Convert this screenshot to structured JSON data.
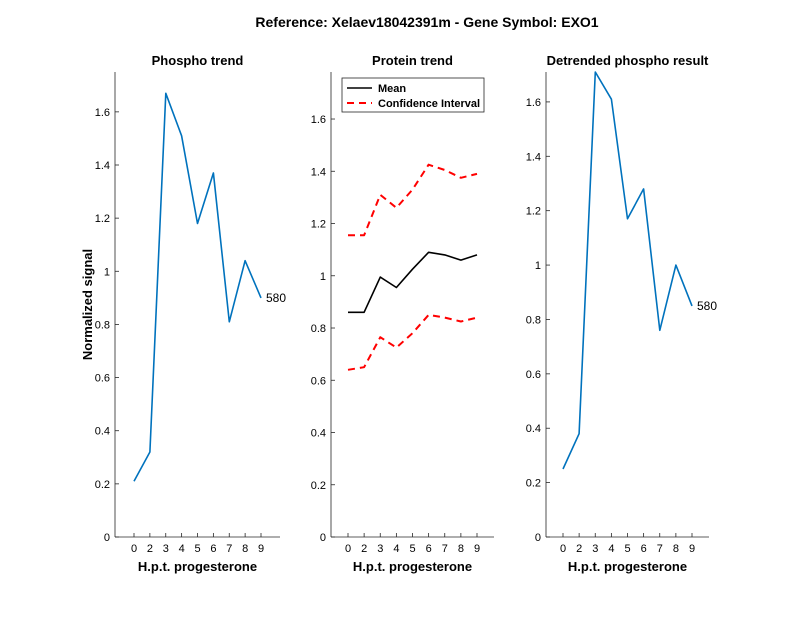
{
  "figure": {
    "suptitle": "Reference:  Xelaev18042391m - Gene Symbol:  EXO1"
  },
  "chart_data": [
    {
      "type": "line",
      "title": "Phospho trend",
      "xlabel": "H.p.t. progesterone",
      "ylabel": "Normalized signal",
      "categories": [
        "0",
        "2",
        "3",
        "4",
        "5",
        "6",
        "7",
        "8",
        "9"
      ],
      "ylim": [
        0,
        1.75
      ],
      "yticks": [
        0,
        0.2,
        0.4,
        0.6,
        0.8,
        1,
        1.2,
        1.4,
        1.6
      ],
      "series": [
        {
          "color": "#0072BD",
          "dash": "solid",
          "values": [
            0.21,
            0.32,
            1.67,
            1.51,
            1.18,
            1.37,
            0.81,
            1.04,
            0.9
          ]
        }
      ],
      "annotation": "580"
    },
    {
      "type": "line",
      "title": "Protein trend",
      "xlabel": "H.p.t. progesterone",
      "ylabel": "",
      "categories": [
        "0",
        "2",
        "3",
        "4",
        "5",
        "6",
        "7",
        "8",
        "9"
      ],
      "ylim": [
        0,
        1.78
      ],
      "yticks": [
        0,
        0.2,
        0.4,
        0.6,
        0.8,
        1,
        1.2,
        1.4,
        1.6
      ],
      "legend_position": "top-left",
      "series": [
        {
          "name": "Mean",
          "color": "#000000",
          "dash": "solid",
          "values": [
            0.86,
            0.86,
            0.995,
            0.955,
            1.025,
            1.09,
            1.08,
            1.06,
            1.08
          ]
        },
        {
          "name": "Confidence Interval",
          "color": "#FF0000",
          "dash": "dashed",
          "values": [
            1.155,
            1.155,
            1.31,
            1.26,
            1.33,
            1.425,
            1.405,
            1.375,
            1.39
          ]
        },
        {
          "name": "",
          "color": "#FF0000",
          "dash": "dashed",
          "values": [
            0.64,
            0.65,
            0.765,
            0.725,
            0.78,
            0.85,
            0.84,
            0.825,
            0.84
          ]
        }
      ]
    },
    {
      "type": "line",
      "title": "Detrended phospho result",
      "xlabel": "H.p.t. progesterone",
      "ylabel": "",
      "categories": [
        "0",
        "2",
        "3",
        "4",
        "5",
        "6",
        "7",
        "8",
        "9"
      ],
      "ylim": [
        0,
        1.71
      ],
      "yticks": [
        0,
        0.2,
        0.4,
        0.6,
        0.8,
        1,
        1.2,
        1.4,
        1.6
      ],
      "series": [
        {
          "color": "#0072BD",
          "dash": "solid",
          "values": [
            0.25,
            0.38,
            1.71,
            1.61,
            1.17,
            1.28,
            0.76,
            1.0,
            0.85
          ]
        }
      ],
      "annotation": "580"
    }
  ]
}
